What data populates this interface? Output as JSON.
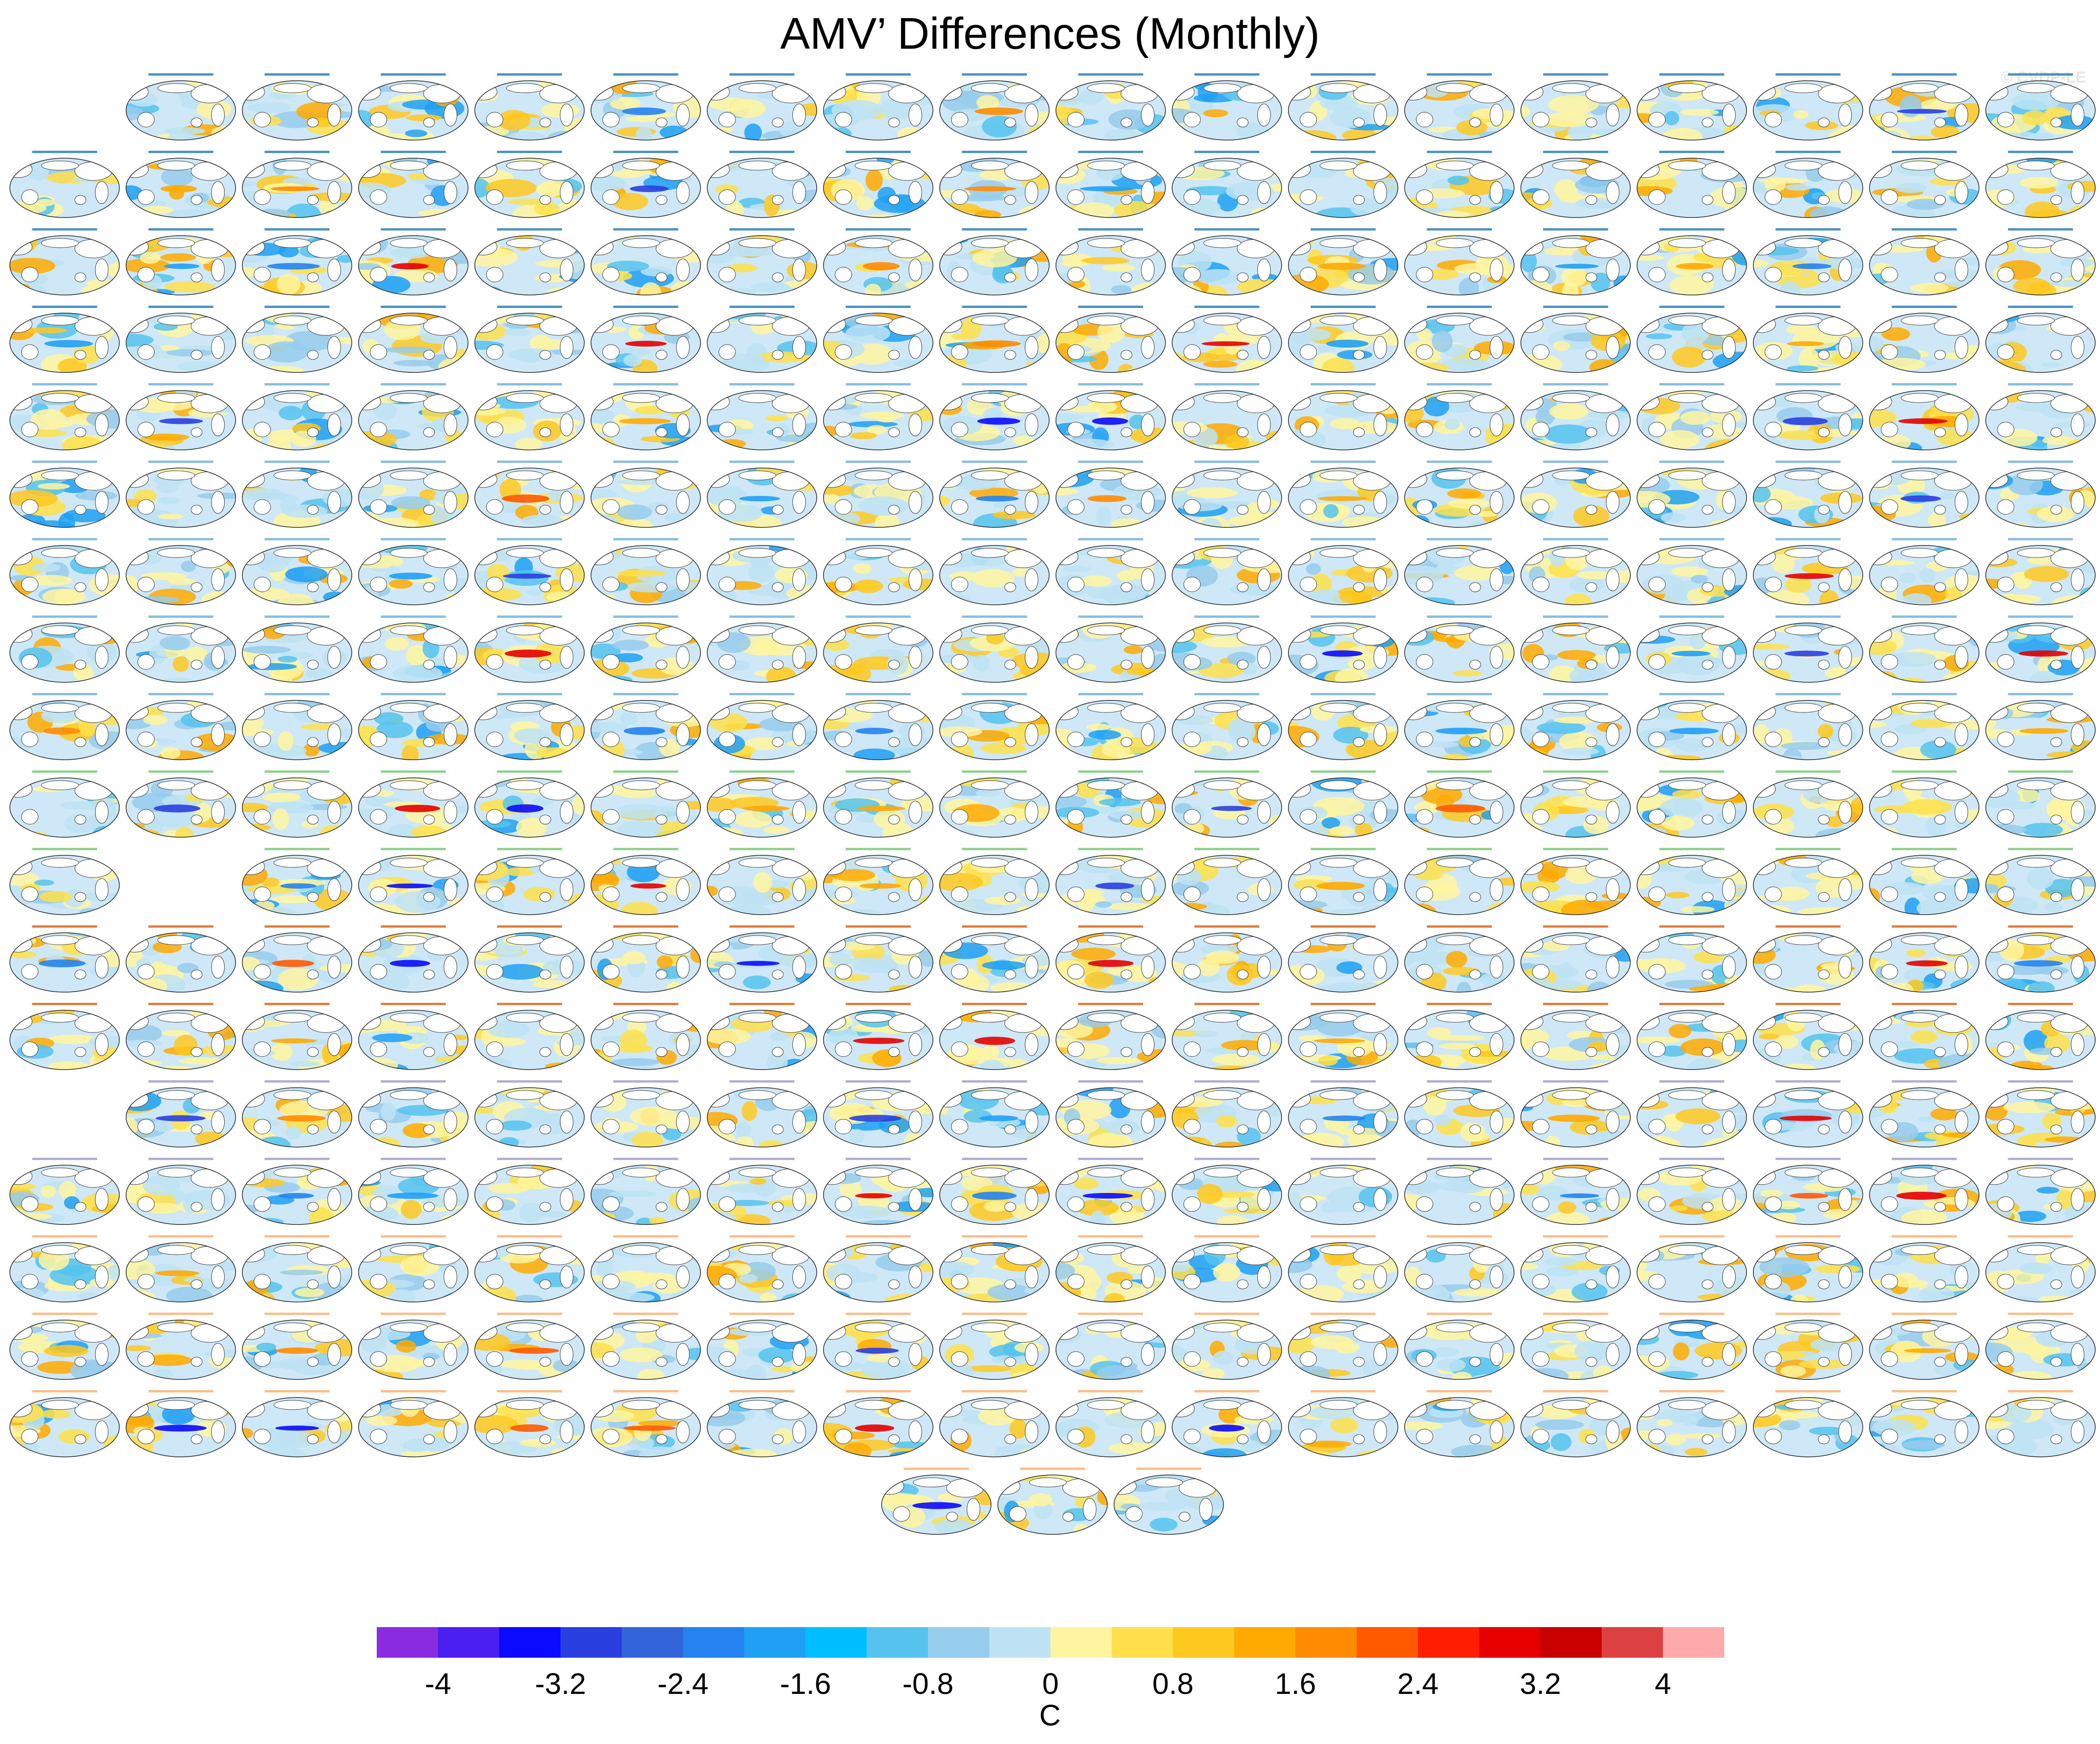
{
  "title": "AMV’ Differences (Monthly)",
  "watermark": "© CVDP-LE",
  "chart_data": {
    "type": "heatmap",
    "title": "AMV’ Differences (Monthly)",
    "description_level": "grid of small global map panels (one per ensemble member), each showing monthly AMV' differences",
    "projection": "global ellipse (Pacific-centred)",
    "panel_rows": [
      {
        "row": 1,
        "count": 17,
        "title_color": "#1f78b4"
      },
      {
        "row": 2,
        "count": 18,
        "title_color": "#1f78b4"
      },
      {
        "row": 3,
        "count": 18,
        "title_color": "#1f78b4"
      },
      {
        "row": 4,
        "count": 18,
        "title_color": "#1f78b4"
      },
      {
        "row": 5,
        "count": 18,
        "title_color": "#6baed6"
      },
      {
        "row": 6,
        "count": 18,
        "title_color": "#6baed6"
      },
      {
        "row": 7,
        "count": 18,
        "title_color": "#6baed6"
      },
      {
        "row": 8,
        "count": 18,
        "title_color": "#6baed6"
      },
      {
        "row": 9,
        "count": 18,
        "title_color": "#6baed6"
      },
      {
        "row": 10,
        "count": 18,
        "title_color": "#74c476"
      },
      {
        "row": 11,
        "count": 17,
        "title_color": "#74c476"
      },
      {
        "row": 12,
        "count": 18,
        "title_color": "#d95f0e"
      },
      {
        "row": 13,
        "count": 18,
        "title_color": "#d95f0e"
      },
      {
        "row": 14,
        "count": 17,
        "title_color": "#9e9ac8"
      },
      {
        "row": 15,
        "count": 18,
        "title_color": "#9e9ac8"
      },
      {
        "row": 16,
        "count": 18,
        "title_color": "#fdae6b"
      },
      {
        "row": 17,
        "count": 18,
        "title_color": "#fdae6b"
      },
      {
        "row": 18,
        "count": 18,
        "title_color": "#fdae6b"
      },
      {
        "row": 19,
        "count": 3,
        "title_color": "#fdae6b"
      }
    ],
    "colorbar": {
      "units": "C",
      "range": [
        -4.4,
        4.4
      ],
      "interval": 0.4,
      "tick_labels": [
        "-4",
        "-3.2",
        "-2.4",
        "-1.6",
        "-0.8",
        "0",
        "0.8",
        "1.6",
        "2.4",
        "3.2",
        "4"
      ],
      "colors": [
        "#8a2be2",
        "#4b1ff0",
        "#0a0aff",
        "#2a3fe0",
        "#3264dc",
        "#2583f0",
        "#1fa0f5",
        "#00bfff",
        "#55c3ee",
        "#96cdec",
        "#bee3f5",
        "#fff5a0",
        "#ffe04a",
        "#ffc81e",
        "#ffaa00",
        "#ff8c00",
        "#ff5a00",
        "#ff1e00",
        "#e60000",
        "#c80000",
        "#dc4040",
        "#ffaaaa"
      ]
    }
  }
}
